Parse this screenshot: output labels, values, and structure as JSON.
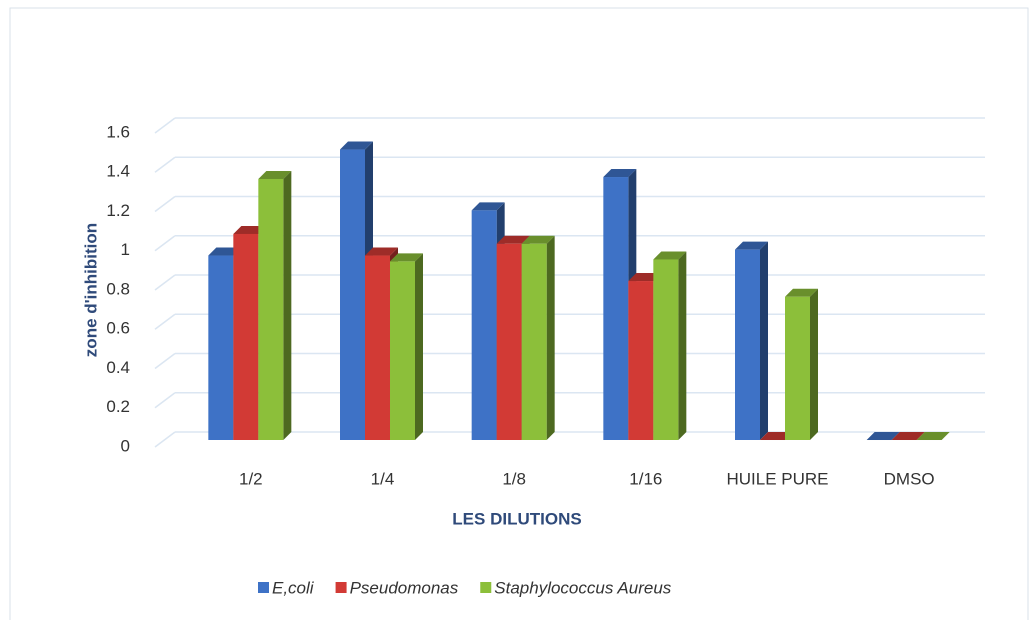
{
  "chart_data": {
    "type": "bar3d",
    "x_label": "LES DILUTIONS",
    "y_label": "zone   d'inhibition",
    "categories": [
      "1/2",
      "1/4",
      "1/8",
      "1/16",
      "HUILE PURE",
      "DMSO"
    ],
    "series": [
      {
        "name": "E,coli",
        "color": "#3e72c6",
        "values": [
          0.94,
          1.48,
          1.17,
          1.34,
          0.97,
          0
        ]
      },
      {
        "name": "Pseudomonas",
        "color": "#d23a35",
        "values": [
          1.05,
          0.94,
          1.0,
          0.81,
          0,
          0
        ]
      },
      {
        "name": "Staphylococcus Aureus",
        "color": "#8cbf3a",
        "values": [
          1.33,
          0.91,
          1.0,
          0.92,
          0.73,
          0
        ]
      }
    ],
    "ylim": [
      0,
      1.6
    ],
    "yticks": [
      0,
      0.2,
      0.4,
      0.6,
      0.8,
      1,
      1.2,
      1.4,
      1.6
    ],
    "grid": true,
    "legend": "bottom"
  }
}
